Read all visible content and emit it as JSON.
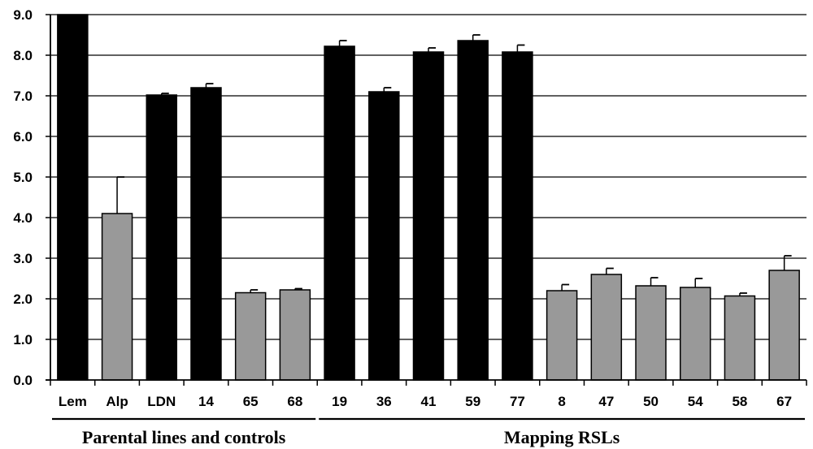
{
  "chart_data": {
    "type": "bar",
    "title": "",
    "xlabel": "",
    "ylabel": "",
    "ylim": [
      0,
      9
    ],
    "yticks": [
      "0.0",
      "1.0",
      "2.0",
      "3.0",
      "4.0",
      "5.0",
      "6.0",
      "7.0",
      "8.0",
      "9.0"
    ],
    "grid": "horizontal",
    "categories": [
      "Lem",
      "Alp",
      "LDN",
      "14",
      "65",
      "68",
      "19",
      "36",
      "41",
      "59",
      "77",
      "8",
      "47",
      "50",
      "54",
      "58",
      "67"
    ],
    "values": [
      9.0,
      4.1,
      7.02,
      7.2,
      2.15,
      2.22,
      8.22,
      7.1,
      8.08,
      8.36,
      8.08,
      2.2,
      2.6,
      2.32,
      2.28,
      2.07,
      2.7
    ],
    "errors": [
      0,
      0.9,
      0.04,
      0.1,
      0.07,
      0.03,
      0.14,
      0.1,
      0.1,
      0.14,
      0.17,
      0.15,
      0.15,
      0.2,
      0.22,
      0.07,
      0.36
    ],
    "bar_colors": [
      "#000000",
      "#999999",
      "#000000",
      "#000000",
      "#999999",
      "#999999",
      "#000000",
      "#000000",
      "#000000",
      "#000000",
      "#000000",
      "#999999",
      "#999999",
      "#999999",
      "#999999",
      "#999999",
      "#999999"
    ],
    "groups": [
      {
        "label": "Parental lines and controls",
        "start": 0,
        "end": 5
      },
      {
        "label": "Mapping RSLs",
        "start": 6,
        "end": 16
      }
    ]
  }
}
